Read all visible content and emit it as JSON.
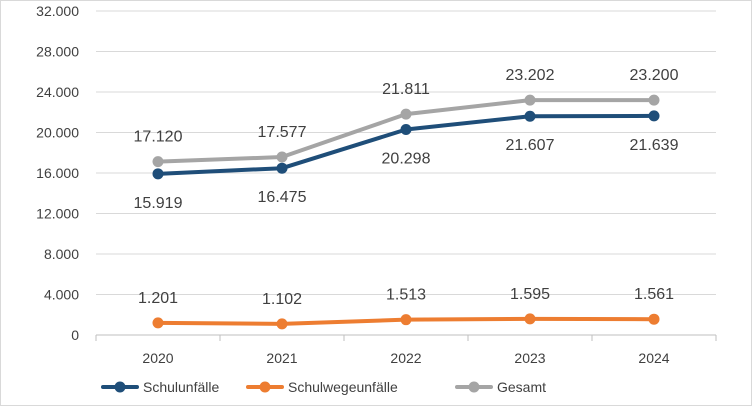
{
  "chart_data": {
    "type": "line",
    "categories": [
      "2020",
      "2021",
      "2022",
      "2023",
      "2024"
    ],
    "y_ticks": [
      "0",
      "4.000",
      "8.000",
      "12.000",
      "16.000",
      "20.000",
      "24.000",
      "28.000",
      "32.000"
    ],
    "ylim": [
      0,
      32000
    ],
    "grid": true,
    "legend_position": "bottom-left",
    "series": [
      {
        "name": "Schulunfälle",
        "color": "#1f4e79",
        "values": [
          15919,
          16475,
          20298,
          21607,
          21639
        ],
        "labels": [
          "15.919",
          "16.475",
          "20.298",
          "21.607",
          "21.639"
        ],
        "label_position": "below"
      },
      {
        "name": "Schulwegeunfälle",
        "color": "#ed7d31",
        "values": [
          1201,
          1102,
          1513,
          1595,
          1561
        ],
        "labels": [
          "1.201",
          "1.102",
          "1.513",
          "1.595",
          "1.561"
        ],
        "label_position": "above"
      },
      {
        "name": "Gesamt",
        "color": "#a5a5a5",
        "values": [
          17120,
          17577,
          21811,
          23202,
          23200
        ],
        "labels": [
          "17.120",
          "17.577",
          "21.811",
          "23.202",
          "23.200"
        ],
        "label_position": "above"
      }
    ]
  }
}
